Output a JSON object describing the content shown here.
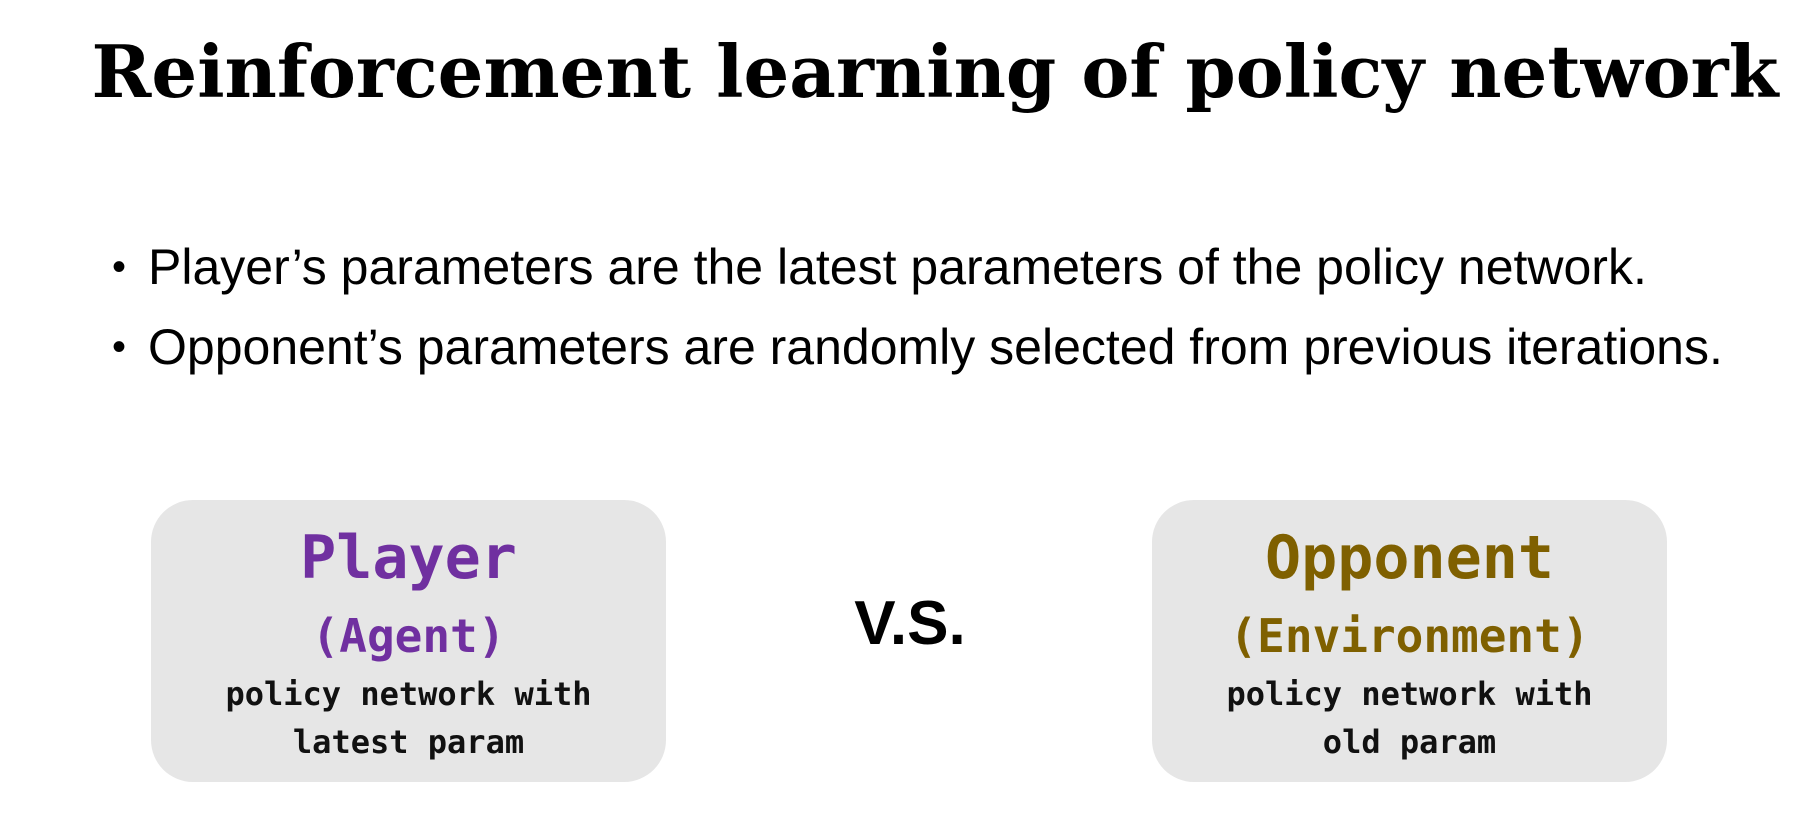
{
  "slide": {
    "title": "Reinforcement learning of policy network"
  },
  "bullets": [
    {
      "marker": "•",
      "text": "Player’s parameters are the latest parameters of the policy network."
    },
    {
      "marker": "•",
      "text": "Opponent’s parameters are randomly selected from previous iterations."
    }
  ],
  "player_card": {
    "title": "Player",
    "subtitle": "(Agent)",
    "desc_line1": "policy network with",
    "desc_line2": "latest param",
    "color": "#7030a0"
  },
  "vs": {
    "label": "V.S."
  },
  "opponent_card": {
    "title": "Opponent",
    "subtitle": "(Environment)",
    "desc_line1": "policy network with",
    "desc_line2": "old param",
    "color": "#7f6000"
  },
  "colors": {
    "card_background": "#e6e6e6",
    "text": "#000000"
  }
}
